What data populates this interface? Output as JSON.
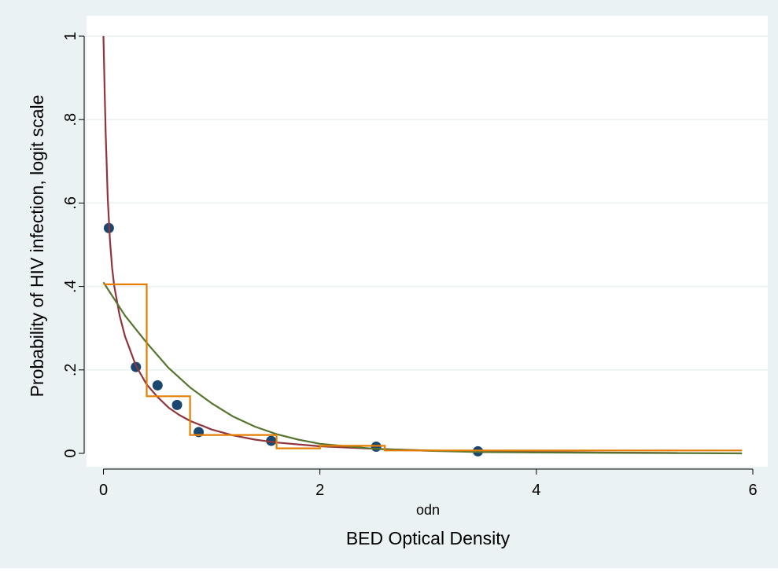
{
  "colors": {
    "outer_background": "#eaf2f3",
    "plot_background": "#ffffff",
    "gridline": "#eaf2f3",
    "points": "#1a476f",
    "curve_red": "#90353b",
    "curve_green": "#55752f",
    "step_orange": "#e37e00"
  },
  "chart_data": {
    "type": "scatter",
    "title": "",
    "xlabel": "odn",
    "xlabel2": "BED Optical Density",
    "ylabel": "Probability of HIV infection, logit scale",
    "xlim": [
      -0.1,
      6.2
    ],
    "ylim": [
      -0.03,
      1.02
    ],
    "grid": true,
    "legend": "none",
    "x_ticks": [
      0,
      2,
      4,
      6
    ],
    "x_tick_labels": [
      "0",
      "2",
      "4",
      "6"
    ],
    "y_ticks": [
      0,
      0.2,
      0.4,
      0.6,
      0.8,
      1
    ],
    "y_tick_labels": [
      "0",
      ".2",
      ".4",
      ".6",
      ".8",
      "1"
    ],
    "series": [
      {
        "type": "scatter",
        "points": [
          {
            "x": 0.05,
            "y": 0.54
          },
          {
            "x": 0.3,
            "y": 0.207
          },
          {
            "x": 0.5,
            "y": 0.163
          },
          {
            "x": 0.68,
            "y": 0.116
          },
          {
            "x": 0.88,
            "y": 0.051
          },
          {
            "x": 1.55,
            "y": 0.03
          },
          {
            "x": 2.52,
            "y": 0.016
          },
          {
            "x": 3.46,
            "y": 0.005
          }
        ]
      },
      {
        "type": "line",
        "points": [
          {
            "x": 0.0,
            "y": 1.0
          },
          {
            "x": 0.01,
            "y": 0.88
          },
          {
            "x": 0.02,
            "y": 0.77
          },
          {
            "x": 0.04,
            "y": 0.61
          },
          {
            "x": 0.06,
            "y": 0.51
          },
          {
            "x": 0.08,
            "y": 0.445
          },
          {
            "x": 0.1,
            "y": 0.4
          },
          {
            "x": 0.15,
            "y": 0.33
          },
          {
            "x": 0.2,
            "y": 0.28
          },
          {
            "x": 0.3,
            "y": 0.21
          },
          {
            "x": 0.4,
            "y": 0.165
          },
          {
            "x": 0.5,
            "y": 0.135
          },
          {
            "x": 0.6,
            "y": 0.11
          },
          {
            "x": 0.7,
            "y": 0.092
          },
          {
            "x": 0.8,
            "y": 0.078
          },
          {
            "x": 1.0,
            "y": 0.057
          },
          {
            "x": 1.2,
            "y": 0.043
          },
          {
            "x": 1.4,
            "y": 0.033
          },
          {
            "x": 1.6,
            "y": 0.026
          },
          {
            "x": 2.0,
            "y": 0.017
          },
          {
            "x": 2.5,
            "y": 0.011
          },
          {
            "x": 3.0,
            "y": 0.007
          },
          {
            "x": 3.5,
            "y": 0.005
          },
          {
            "x": 4.0,
            "y": 0.003
          },
          {
            "x": 4.5,
            "y": 0.002
          },
          {
            "x": 5.0,
            "y": 0.0015
          },
          {
            "x": 5.3,
            "y": 0.001
          }
        ]
      },
      {
        "type": "line",
        "points": [
          {
            "x": 0.0,
            "y": 0.41
          },
          {
            "x": 0.2,
            "y": 0.33
          },
          {
            "x": 0.4,
            "y": 0.265
          },
          {
            "x": 0.6,
            "y": 0.205
          },
          {
            "x": 0.8,
            "y": 0.158
          },
          {
            "x": 1.0,
            "y": 0.12
          },
          {
            "x": 1.2,
            "y": 0.088
          },
          {
            "x": 1.4,
            "y": 0.064
          },
          {
            "x": 1.6,
            "y": 0.046
          },
          {
            "x": 1.8,
            "y": 0.033
          },
          {
            "x": 2.0,
            "y": 0.023
          },
          {
            "x": 2.5,
            "y": 0.011
          },
          {
            "x": 3.0,
            "y": 0.006
          },
          {
            "x": 3.5,
            "y": 0.003
          },
          {
            "x": 4.0,
            "y": 0.002
          },
          {
            "x": 5.0,
            "y": 0.001
          },
          {
            "x": 5.9,
            "y": 0.0
          }
        ]
      },
      {
        "type": "step",
        "points": [
          {
            "x": 0.0,
            "y": 0.405
          },
          {
            "x": 0.4,
            "y": 0.405
          },
          {
            "x": 0.4,
            "y": 0.137
          },
          {
            "x": 0.8,
            "y": 0.137
          },
          {
            "x": 0.8,
            "y": 0.044
          },
          {
            "x": 1.6,
            "y": 0.044
          },
          {
            "x": 1.6,
            "y": 0.012
          },
          {
            "x": 2.0,
            "y": 0.012
          },
          {
            "x": 2.0,
            "y": 0.018
          },
          {
            "x": 2.6,
            "y": 0.018
          },
          {
            "x": 2.6,
            "y": 0.007
          },
          {
            "x": 5.9,
            "y": 0.007
          }
        ]
      }
    ]
  }
}
